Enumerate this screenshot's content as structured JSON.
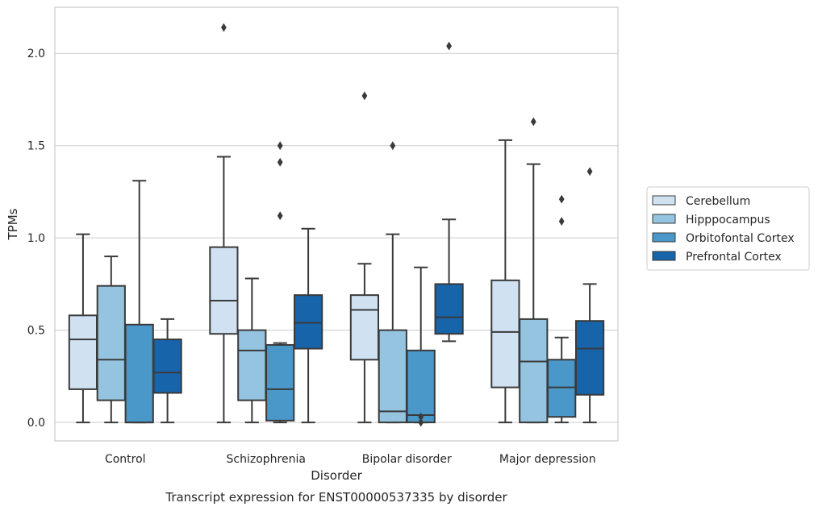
{
  "chart_data": {
    "type": "box",
    "title": "",
    "caption": "Transcript expression for ENST00000537335 by disorder",
    "xlabel": "Disorder",
    "ylabel": "TPMs",
    "ylim": [
      -0.1,
      2.25
    ],
    "yticks": [
      0.0,
      0.5,
      1.0,
      1.5,
      2.0
    ],
    "ytick_labels": [
      "0.0",
      "0.5",
      "1.0",
      "1.5",
      "2.0"
    ],
    "grid": "horizontal",
    "legend_position": "right",
    "categories": [
      "Control",
      "Schizophrenia",
      "Bipolar disorder",
      "Major depression"
    ],
    "series": [
      {
        "name": "Cerebellum",
        "color": "#d0e1f2",
        "boxes": [
          {
            "whisker_low": 0.0,
            "q1": 0.18,
            "median": 0.45,
            "q3": 0.58,
            "whisker_high": 1.02,
            "outliers": []
          },
          {
            "whisker_low": 0.0,
            "q1": 0.48,
            "median": 0.66,
            "q3": 0.95,
            "whisker_high": 1.44,
            "outliers": [
              2.14
            ]
          },
          {
            "whisker_low": 0.0,
            "q1": 0.34,
            "median": 0.61,
            "q3": 0.69,
            "whisker_high": 0.86,
            "outliers": [
              1.77
            ]
          },
          {
            "whisker_low": 0.0,
            "q1": 0.19,
            "median": 0.49,
            "q3": 0.77,
            "whisker_high": 1.53,
            "outliers": []
          }
        ]
      },
      {
        "name": "Hipppocampus",
        "color": "#94c4df",
        "boxes": [
          {
            "whisker_low": 0.0,
            "q1": 0.12,
            "median": 0.34,
            "q3": 0.74,
            "whisker_high": 0.9,
            "outliers": []
          },
          {
            "whisker_low": 0.0,
            "q1": 0.12,
            "median": 0.39,
            "q3": 0.5,
            "whisker_high": 0.78,
            "outliers": []
          },
          {
            "whisker_low": 0.0,
            "q1": 0.0,
            "median": 0.06,
            "q3": 0.5,
            "whisker_high": 1.02,
            "outliers": [
              1.5
            ]
          },
          {
            "whisker_low": 0.0,
            "q1": 0.0,
            "median": 0.33,
            "q3": 0.56,
            "whisker_high": 1.4,
            "outliers": [
              1.63
            ]
          }
        ]
      },
      {
        "name": "Orbitofontal Cortex",
        "color": "#4a98c9",
        "boxes": [
          {
            "whisker_low": 0.0,
            "q1": 0.0,
            "median": 0.0,
            "q3": 0.53,
            "whisker_high": 1.31,
            "outliers": []
          },
          {
            "whisker_low": 0.0,
            "q1": 0.01,
            "median": 0.18,
            "q3": 0.42,
            "whisker_high": 0.43,
            "outliers": [
              1.12,
              1.41,
              1.5
            ]
          },
          {
            "whisker_low": 0.0,
            "q1": 0.0,
            "median": 0.04,
            "q3": 0.39,
            "whisker_high": 0.84,
            "outliers": [
              0.0,
              0.03
            ]
          },
          {
            "whisker_low": 0.0,
            "q1": 0.03,
            "median": 0.19,
            "q3": 0.34,
            "whisker_high": 0.46,
            "outliers": [
              1.09,
              1.21
            ]
          }
        ]
      },
      {
        "name": "Prefrontal Cortex",
        "color": "#1764ab",
        "boxes": [
          {
            "whisker_low": 0.0,
            "q1": 0.16,
            "median": 0.27,
            "q3": 0.45,
            "whisker_high": 0.56,
            "outliers": []
          },
          {
            "whisker_low": 0.0,
            "q1": 0.4,
            "median": 0.54,
            "q3": 0.69,
            "whisker_high": 1.05,
            "outliers": []
          },
          {
            "whisker_low": 0.44,
            "q1": 0.48,
            "median": 0.57,
            "q3": 0.75,
            "whisker_high": 1.1,
            "outliers": [
              2.04
            ]
          },
          {
            "whisker_low": 0.0,
            "q1": 0.15,
            "median": 0.4,
            "q3": 0.55,
            "whisker_high": 0.75,
            "outliers": [
              1.36
            ]
          }
        ]
      }
    ]
  }
}
